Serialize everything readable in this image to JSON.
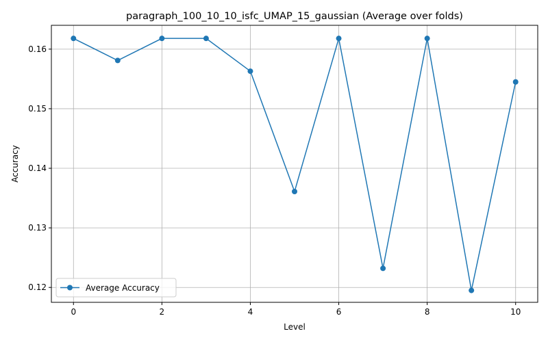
{
  "chart_data": {
    "type": "line",
    "title": "paragraph_100_10_10_isfc_UMAP_15_gaussian (Average over folds)",
    "xlabel": "Level",
    "ylabel": "Accuracy",
    "xlim": [
      -0.5,
      10.5
    ],
    "ylim": [
      0.1175,
      0.164
    ],
    "xticks": [
      0,
      2,
      4,
      6,
      8,
      10
    ],
    "yticks": [
      0.12,
      0.13,
      0.14,
      0.15,
      0.16
    ],
    "ytick_labels": [
      "0.12",
      "0.13",
      "0.14",
      "0.15",
      "0.16"
    ],
    "grid": true,
    "legend_position": "lower-left",
    "x": [
      0,
      1,
      2,
      3,
      4,
      5,
      6,
      7,
      8,
      9,
      10
    ],
    "series": [
      {
        "name": "Average Accuracy",
        "color": "#1f77b4",
        "marker": "circle",
        "values": [
          0.1618,
          0.1581,
          0.1618,
          0.1618,
          0.1563,
          0.1361,
          0.1618,
          0.1232,
          0.1618,
          0.1195,
          0.1545
        ]
      }
    ]
  }
}
